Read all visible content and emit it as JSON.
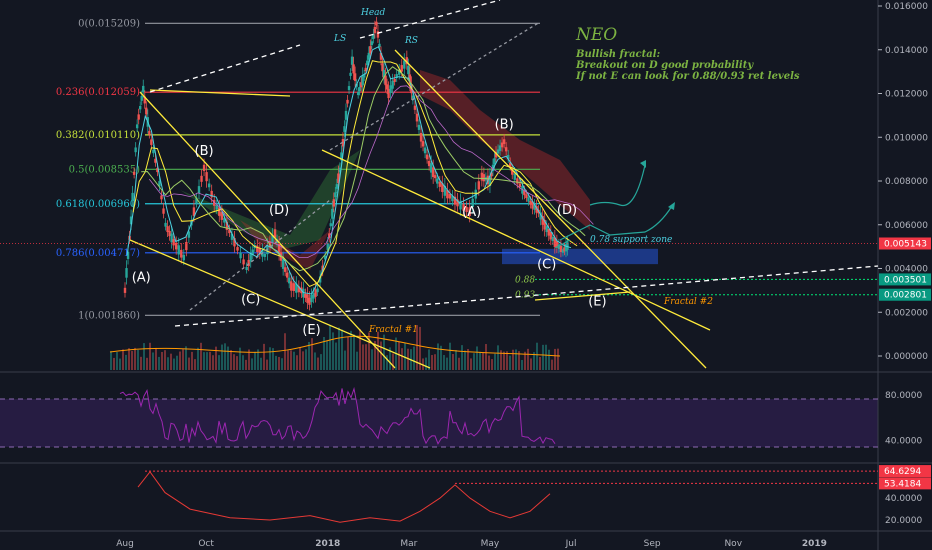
{
  "chart_data": {
    "type": "candlestick",
    "symbol": "NEO",
    "title": "NEO",
    "notes": [
      "Bullish fractal:",
      "Breakout on D good probability",
      "If not E can look for 0.88/0.93 ret levels"
    ],
    "x_axis": {
      "ticks": [
        "Aug",
        "Oct",
        "2018",
        "Mar",
        "May",
        "Jul",
        "Sep",
        "Nov",
        "2019"
      ]
    },
    "price_axis": {
      "range": [
        -0.0015,
        0.016
      ],
      "ticks": [
        "0.016000",
        "0.014000",
        "0.012000",
        "0.010000",
        "0.008000",
        "0.006000",
        "0.004000",
        "0.002000",
        "0.000000"
      ],
      "current_price": "0.005143",
      "level_badges": [
        "0.003501",
        "0.002801"
      ]
    },
    "fib_levels": [
      {
        "label": "0(0.015209)",
        "value": 0.015209,
        "color": "#9598a1"
      },
      {
        "label": "0.236(0.012059)",
        "value": 0.012059,
        "color": "#f23645"
      },
      {
        "label": "0.382(0.010110)",
        "value": 0.01011,
        "color": "#c5e03a"
      },
      {
        "label": "0.5(0.008535)",
        "value": 0.008535,
        "color": "#4caf50"
      },
      {
        "label": "0.618(0.006960)",
        "value": 0.00696,
        "color": "#26c6da"
      },
      {
        "label": "0.786(0.004717)",
        "value": 0.004717,
        "color": "#2962ff"
      },
      {
        "label": "1(0.001860)",
        "value": 0.00186,
        "color": "#9598a1"
      }
    ],
    "retracement_targets": [
      {
        "label": "0.88",
        "value": 0.003501
      },
      {
        "label": "0.93",
        "value": 0.002801
      }
    ],
    "wave_labels": [
      {
        "label": "(A)",
        "month": 0.4,
        "price": 0.0034
      },
      {
        "label": "(B)",
        "month": 1.95,
        "price": 0.0092
      },
      {
        "label": "(C)",
        "month": 3.1,
        "price": 0.0024
      },
      {
        "label": "(D)",
        "month": 3.8,
        "price": 0.0065
      },
      {
        "label": "(E)",
        "month": 4.6,
        "price": 0.001
      },
      {
        "label": "(A)",
        "month": 8.55,
        "price": 0.0064
      },
      {
        "label": "(B)",
        "month": 9.35,
        "price": 0.0104
      },
      {
        "label": "(C)",
        "month": 10.4,
        "price": 0.004
      },
      {
        "label": "(D)",
        "month": 10.9,
        "price": 0.0065
      },
      {
        "label": "(E)",
        "month": 11.65,
        "price": 0.0023
      }
    ],
    "pattern_labels": {
      "head": "Head",
      "ls": "LS",
      "rs": "RS",
      "fractal1": "Fractal #1",
      "fractal2": "Fractal #2",
      "support_zone": "0.78 support zone"
    },
    "price_series_month_index_0_is_Aug_2017": [
      [
        0,
        0.003
      ],
      [
        0.15,
        0.0062
      ],
      [
        0.3,
        0.0105
      ],
      [
        0.45,
        0.0122
      ],
      [
        0.6,
        0.0102
      ],
      [
        0.8,
        0.0085
      ],
      [
        1.0,
        0.006
      ],
      [
        1.2,
        0.0052
      ],
      [
        1.45,
        0.0045
      ],
      [
        1.7,
        0.0066
      ],
      [
        1.95,
        0.0086
      ],
      [
        2.2,
        0.007
      ],
      [
        2.45,
        0.0062
      ],
      [
        2.7,
        0.0052
      ],
      [
        3.0,
        0.004
      ],
      [
        3.2,
        0.005
      ],
      [
        3.45,
        0.0046
      ],
      [
        3.7,
        0.0056
      ],
      [
        3.9,
        0.0042
      ],
      [
        4.1,
        0.0032
      ],
      [
        4.35,
        0.003
      ],
      [
        4.55,
        0.0025
      ],
      [
        4.75,
        0.003
      ],
      [
        5.0,
        0.005
      ],
      [
        5.15,
        0.007
      ],
      [
        5.3,
        0.0085
      ],
      [
        5.45,
        0.011
      ],
      [
        5.6,
        0.0135
      ],
      [
        5.75,
        0.012
      ],
      [
        5.9,
        0.0128
      ],
      [
        6.05,
        0.014
      ],
      [
        6.2,
        0.0152
      ],
      [
        6.35,
        0.0132
      ],
      [
        6.5,
        0.012
      ],
      [
        6.7,
        0.0128
      ],
      [
        6.95,
        0.0135
      ],
      [
        7.1,
        0.0118
      ],
      [
        7.3,
        0.01
      ],
      [
        7.5,
        0.0088
      ],
      [
        7.7,
        0.008
      ],
      [
        7.95,
        0.0074
      ],
      [
        8.2,
        0.007
      ],
      [
        8.5,
        0.0066
      ],
      [
        8.8,
        0.0082
      ],
      [
        9.0,
        0.008
      ],
      [
        9.15,
        0.0092
      ],
      [
        9.35,
        0.0098
      ],
      [
        9.55,
        0.0084
      ],
      [
        9.8,
        0.0076
      ],
      [
        10.0,
        0.007
      ],
      [
        10.2,
        0.0066
      ],
      [
        10.4,
        0.0058
      ],
      [
        10.6,
        0.0052
      ],
      [
        10.8,
        0.0048
      ],
      [
        10.95,
        0.0051
      ]
    ],
    "rsi_panel": {
      "ticks": [
        "80.0000",
        "40.0000"
      ],
      "range": [
        20,
        100
      ],
      "band": [
        30,
        70
      ]
    },
    "lower_panel": {
      "ticks": [
        "40.0000",
        "20.0000"
      ],
      "range": [
        10,
        72
      ],
      "badges": [
        "64.6294",
        "53.4184"
      ]
    }
  }
}
